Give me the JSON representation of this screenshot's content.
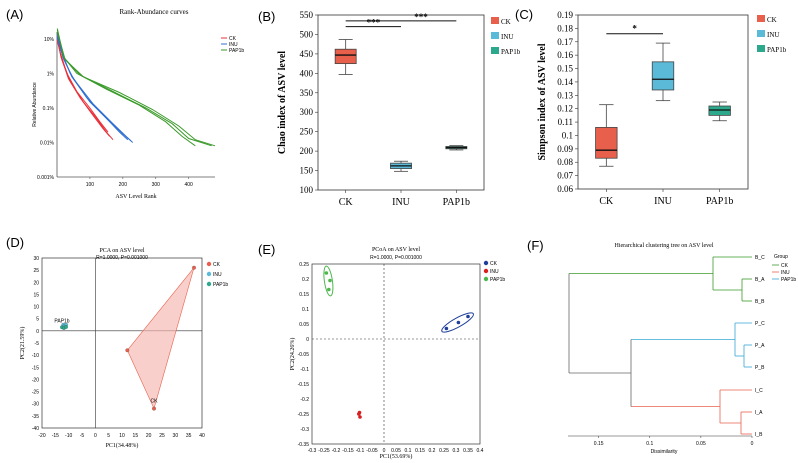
{
  "colors": {
    "CK": "#e8604c",
    "INU": "#5bbad8",
    "PAP1b": "#2ca98c",
    "rank_CK": "#e8303a",
    "rank_INU": "#2f6fd1",
    "rank_PAP1b": "#3a9a2a",
    "pcoa_CK": "#1f3f9a",
    "pcoa_INU": "#d82020",
    "pcoa_PAP1b": "#4cb84c",
    "tree_B": "#3a9a2a",
    "tree_P": "#35a9d4",
    "tree_I": "#e8604c"
  },
  "panels": {
    "A": "(A)",
    "B": "(B)",
    "C": "(C)",
    "D": "(D)",
    "E": "(E)",
    "F": "(F)"
  },
  "chart_data": [
    {
      "id": "A",
      "type": "line",
      "title": "Rank-Abundance curves",
      "xlabel": "ASV Level Rank",
      "ylabel": "Relative Abundance",
      "ylog": true,
      "xticks": [
        "100",
        "200",
        "300",
        "400"
      ],
      "yticks": [
        "10%",
        "1%",
        "0.1%",
        "0.01%",
        "0.001%"
      ],
      "xlim": [
        0,
        480
      ],
      "ylim_log10": [
        -3,
        1.2
      ],
      "legend": [
        "CK",
        "INU",
        "PAP1b"
      ],
      "series": [
        {
          "name": "CK",
          "curves": [
            [
              [
                1,
                12
              ],
              [
                10,
                4
              ],
              [
                30,
                1.0
              ],
              [
                60,
                0.3
              ],
              [
                100,
                0.1
              ],
              [
                130,
                0.04
              ],
              [
                155,
                0.02
              ]
            ],
            [
              [
                1,
                10
              ],
              [
                12,
                3
              ],
              [
                35,
                0.7
              ],
              [
                70,
                0.2
              ],
              [
                110,
                0.06
              ],
              [
                140,
                0.025
              ],
              [
                160,
                0.015
              ]
            ],
            [
              [
                1,
                9
              ],
              [
                15,
                2.5
              ],
              [
                40,
                0.6
              ],
              [
                80,
                0.15
              ],
              [
                120,
                0.05
              ],
              [
                150,
                0.02
              ],
              [
                170,
                0.012
              ]
            ]
          ]
        },
        {
          "name": "INU",
          "curves": [
            [
              [
                1,
                15
              ],
              [
                15,
                4
              ],
              [
                40,
                1.0
              ],
              [
                90,
                0.2
              ],
              [
                150,
                0.05
              ],
              [
                190,
                0.02
              ],
              [
                215,
                0.012
              ]
            ],
            [
              [
                1,
                12
              ],
              [
                18,
                3
              ],
              [
                45,
                0.8
              ],
              [
                100,
                0.15
              ],
              [
                160,
                0.04
              ],
              [
                200,
                0.018
              ],
              [
                225,
                0.011
              ]
            ],
            [
              [
                1,
                11
              ],
              [
                20,
                2.6
              ],
              [
                50,
                0.7
              ],
              [
                110,
                0.13
              ],
              [
                170,
                0.035
              ],
              [
                210,
                0.015
              ],
              [
                230,
                0.01
              ]
            ]
          ]
        },
        {
          "name": "PAP1b",
          "curves": [
            [
              [
                1,
                20
              ],
              [
                20,
                3
              ],
              [
                60,
                1.0
              ],
              [
                150,
                0.35
              ],
              [
                250,
                0.12
              ],
              [
                330,
                0.04
              ],
              [
                380,
                0.015
              ],
              [
                420,
                0.008
              ]
            ],
            [
              [
                1,
                18
              ],
              [
                22,
                2.8
              ],
              [
                70,
                0.9
              ],
              [
                170,
                0.3
              ],
              [
                270,
                0.1
              ],
              [
                350,
                0.035
              ],
              [
                400,
                0.013
              ],
              [
                470,
                0.008
              ]
            ],
            [
              [
                1,
                16
              ],
              [
                25,
                2.5
              ],
              [
                80,
                0.8
              ],
              [
                190,
                0.28
              ],
              [
                290,
                0.09
              ],
              [
                370,
                0.03
              ],
              [
                420,
                0.012
              ],
              [
                480,
                0.008
              ]
            ]
          ]
        }
      ]
    },
    {
      "id": "B",
      "type": "box",
      "ylabel": "Chao index of ASV level",
      "ylim": [
        100,
        550
      ],
      "yticks": [
        "100",
        "150",
        "200",
        "250",
        "300",
        "350",
        "400",
        "450",
        "500",
        "550"
      ],
      "categories": [
        "CK",
        "INU",
        "PAP1b"
      ],
      "boxes": [
        {
          "name": "CK",
          "min": 397,
          "q1": 425,
          "median": 447,
          "q3": 462,
          "max": 487
        },
        {
          "name": "INU",
          "min": 148,
          "q1": 155,
          "median": 162,
          "q3": 169,
          "max": 174
        },
        {
          "name": "PAP1b",
          "min": 203,
          "q1": 206,
          "median": 209,
          "q3": 212,
          "max": 214
        }
      ],
      "sig": [
        {
          "from": 0,
          "to": 1,
          "label": "***"
        },
        {
          "from": 0,
          "to": 2,
          "label": "***"
        }
      ],
      "legend": [
        "CK",
        "INU",
        "PAP1b"
      ]
    },
    {
      "id": "C",
      "type": "box",
      "ylabel": "Simpson index of ASV level",
      "ylim": [
        0.06,
        0.19
      ],
      "yticks": [
        "0.06",
        "0.07",
        "0.08",
        "0.09",
        "0.1",
        "0.11",
        "0.12",
        "0.13",
        "0.14",
        "0.15",
        "0.16",
        "0.17",
        "0.18",
        "0.19"
      ],
      "categories": [
        "CK",
        "INU",
        "PAP1b"
      ],
      "boxes": [
        {
          "name": "CK",
          "min": 0.077,
          "q1": 0.083,
          "median": 0.089,
          "q3": 0.106,
          "max": 0.123
        },
        {
          "name": "INU",
          "min": 0.126,
          "q1": 0.134,
          "median": 0.142,
          "q3": 0.155,
          "max": 0.169
        },
        {
          "name": "PAP1b",
          "min": 0.111,
          "q1": 0.115,
          "median": 0.119,
          "q3": 0.122,
          "max": 0.125
        }
      ],
      "sig": [
        {
          "from": 0,
          "to": 1,
          "label": "*"
        }
      ],
      "legend": [
        "CK",
        "INU",
        "PAP1b"
      ]
    },
    {
      "id": "D",
      "type": "scatter",
      "title": "PCA on ASV level",
      "subtitle": "R=1.0000, P=0.001000",
      "xlabel": "PC1(34.48%)",
      "ylabel": "PC2(21.59%)",
      "xlim": [
        -20,
        40
      ],
      "ylim": [
        -40,
        30
      ],
      "xticks": [
        -20,
        -15,
        -10,
        -5,
        0,
        5,
        10,
        15,
        20,
        25,
        30,
        35,
        40
      ],
      "yticks": [
        -40,
        -35,
        -30,
        -25,
        -20,
        -15,
        -10,
        -5,
        0,
        5,
        10,
        15,
        20,
        25,
        30
      ],
      "groups": [
        {
          "name": "CK",
          "points": [
            [
              37,
              26
            ],
            [
              12,
              -8
            ],
            [
              22,
              -32
            ]
          ],
          "label": "CK"
        },
        {
          "name": "INU",
          "points": [
            [
              -12,
              2.5
            ],
            [
              -11.5,
              2
            ],
            [
              -11,
              2.5
            ]
          ],
          "label": "INU"
        },
        {
          "name": "PAP1b",
          "points": [
            [
              -12.5,
              1.5
            ],
            [
              -11.8,
              1.2
            ],
            [
              -11,
              1.6
            ]
          ],
          "label": "PAP1b"
        }
      ],
      "legend": [
        "CK",
        "INU",
        "PAP1b"
      ]
    },
    {
      "id": "E",
      "type": "scatter",
      "title": "PCoA on ASV level",
      "subtitle": "R=1.0000, P=0.001000",
      "xlabel": "PC1(53.69%)",
      "ylabel": "PC2(24.26%)",
      "xlim": [
        -0.3,
        0.4
      ],
      "ylim": [
        -0.35,
        0.25
      ],
      "xticks": [
        "-0.3",
        "-0.25",
        "-0.2",
        "-0.15",
        "-0.1",
        "-0.05",
        "0",
        "0.05",
        "0.1",
        "0.15",
        "0.2",
        "0.25",
        "0.3",
        "0.35",
        "0.4"
      ],
      "yticks": [
        "-0.35",
        "-0.3",
        "-0.25",
        "-0.2",
        "-0.15",
        "-0.1",
        "-0.05",
        "0",
        "0.05",
        "0.1",
        "0.15",
        "0.2",
        "0.25"
      ],
      "groups": [
        {
          "name": "CK",
          "points": [
            [
              0.26,
              0.035
            ],
            [
              0.31,
              0.055
            ],
            [
              0.35,
              0.075
            ]
          ]
        },
        {
          "name": "INU",
          "points": [
            [
              -0.105,
              -0.25
            ],
            [
              -0.1,
              -0.26
            ],
            [
              -0.102,
              -0.245
            ]
          ]
        },
        {
          "name": "PAP1b",
          "points": [
            [
              -0.24,
              0.22
            ],
            [
              -0.225,
              0.195
            ],
            [
              -0.23,
              0.165
            ]
          ]
        }
      ],
      "legend": [
        "CK",
        "INU",
        "PAP1b"
      ]
    },
    {
      "id": "F",
      "type": "dendrogram",
      "title": "Hierarchical clustering tree on ASV level",
      "xlabel": "Dissimilarity",
      "xticks": [
        "0.15",
        "0.1",
        "0.05",
        "0"
      ],
      "leaves": [
        "B_C",
        "B_A",
        "B_B",
        "P_C",
        "P_A",
        "P_B",
        "I_C",
        "I_A",
        "I_B"
      ],
      "legend_title": "Group",
      "legend": [
        "CK",
        "INU",
        "PAP1b"
      ]
    }
  ]
}
